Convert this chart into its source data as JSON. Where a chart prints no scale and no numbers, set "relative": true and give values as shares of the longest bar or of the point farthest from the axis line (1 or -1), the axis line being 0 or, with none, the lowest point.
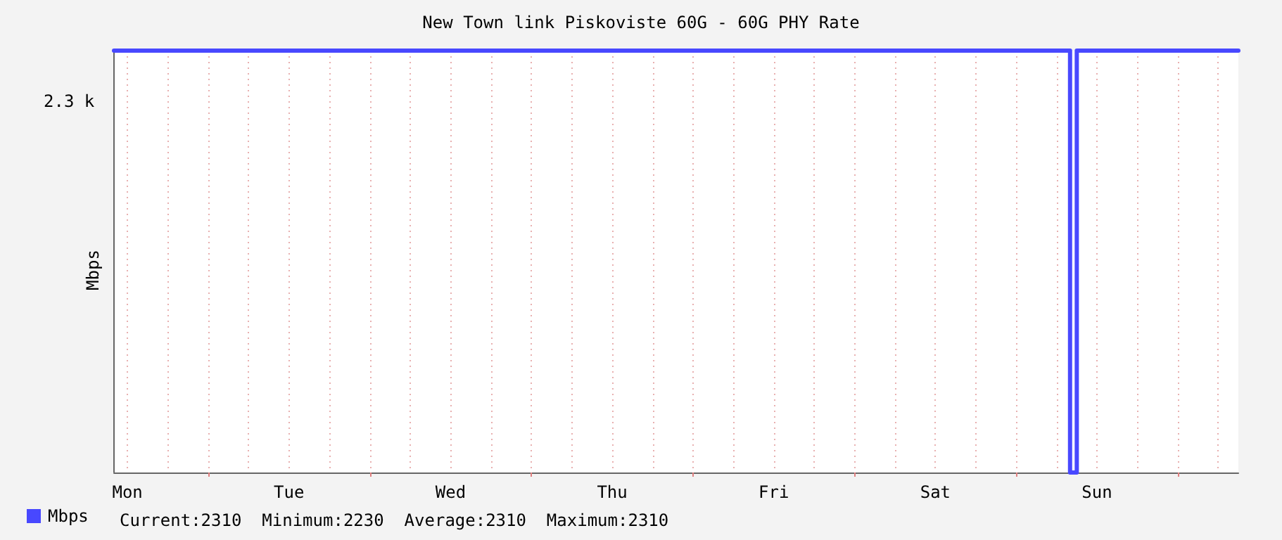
{
  "chart_data": {
    "type": "step",
    "title": "New Town link Piskoviste 60G - 60G PHY Rate",
    "ylabel": "Mbps",
    "relative": true,
    "categories": [
      null,
      null,
      "Mon",
      null,
      null,
      null,
      null,
      null,
      null,
      null,
      null,
      null,
      null,
      null,
      null,
      null,
      null,
      null,
      null,
      null,
      null,
      null,
      null,
      null,
      null,
      null,
      "Tue",
      null,
      null,
      null,
      null,
      null,
      null,
      null,
      null,
      null,
      null,
      null,
      null,
      null,
      null,
      null,
      null,
      null,
      null,
      null,
      null,
      null,
      null,
      null,
      "Wed",
      null,
      null,
      null,
      null,
      null,
      null,
      null,
      null,
      null,
      null,
      null,
      null,
      null,
      null,
      null,
      null,
      null,
      null,
      null,
      null,
      null,
      null,
      null,
      "Thu",
      null,
      null,
      null,
      null,
      null,
      null,
      null,
      null,
      null,
      null,
      null,
      null,
      null,
      null,
      null,
      null,
      null,
      null,
      null,
      null,
      null,
      null,
      null,
      "Fri",
      null,
      null,
      null,
      null,
      null,
      null,
      null,
      null,
      null,
      null,
      null,
      null,
      null,
      null,
      null,
      null,
      null,
      null,
      null,
      null,
      null,
      null,
      null,
      "Sat",
      null,
      null,
      null,
      null,
      null,
      null,
      null,
      null,
      null,
      null,
      null,
      null,
      null,
      null,
      null,
      null,
      null,
      null,
      null,
      null,
      null,
      null,
      null,
      "Sun",
      null,
      null,
      null,
      null,
      null,
      null,
      null,
      null,
      null,
      null,
      null,
      null,
      null,
      null,
      null,
      null,
      null,
      null,
      null,
      null,
      null
    ],
    "series": [
      {
        "name": "Mbps",
        "color": "#4848ff",
        "values": [
          1,
          1,
          1,
          1,
          1,
          1,
          1,
          1,
          1,
          1,
          1,
          1,
          1,
          1,
          1,
          1,
          1,
          1,
          1,
          1,
          1,
          1,
          1,
          1,
          1,
          1,
          1,
          1,
          1,
          1,
          1,
          1,
          1,
          1,
          1,
          1,
          1,
          1,
          1,
          1,
          1,
          1,
          1,
          1,
          1,
          1,
          1,
          1,
          1,
          1,
          1,
          1,
          1,
          1,
          1,
          1,
          1,
          1,
          1,
          1,
          1,
          1,
          1,
          1,
          1,
          1,
          1,
          1,
          1,
          1,
          1,
          1,
          1,
          1,
          1,
          1,
          1,
          1,
          1,
          1,
          1,
          1,
          1,
          1,
          1,
          1,
          1,
          1,
          1,
          1,
          1,
          1,
          1,
          1,
          1,
          1,
          1,
          1,
          1,
          1,
          1,
          1,
          1,
          1,
          1,
          1,
          1,
          1,
          1,
          1,
          1,
          1,
          1,
          1,
          1,
          1,
          1,
          1,
          1,
          1,
          1,
          1,
          1,
          1,
          1,
          1,
          1,
          1,
          1,
          1,
          1,
          1,
          1,
          1,
          1,
          1,
          1,
          1,
          1,
          1,
          1,
          1,
          0,
          1,
          1,
          1,
          1,
          1,
          1,
          1,
          1,
          1,
          1,
          1,
          1,
          1,
          1,
          1,
          1,
          1,
          1,
          1,
          1,
          1,
          1,
          1,
          1,
          1
        ]
      }
    ],
    "grid": "x",
    "legend": "bottom left",
    "marker": "none",
    "line_style": "solid",
    "annotations": [
      "2.3 k",
      "Current:2310",
      "Minimum:2230",
      "Average:2310",
      "Maximum:2310"
    ]
  }
}
